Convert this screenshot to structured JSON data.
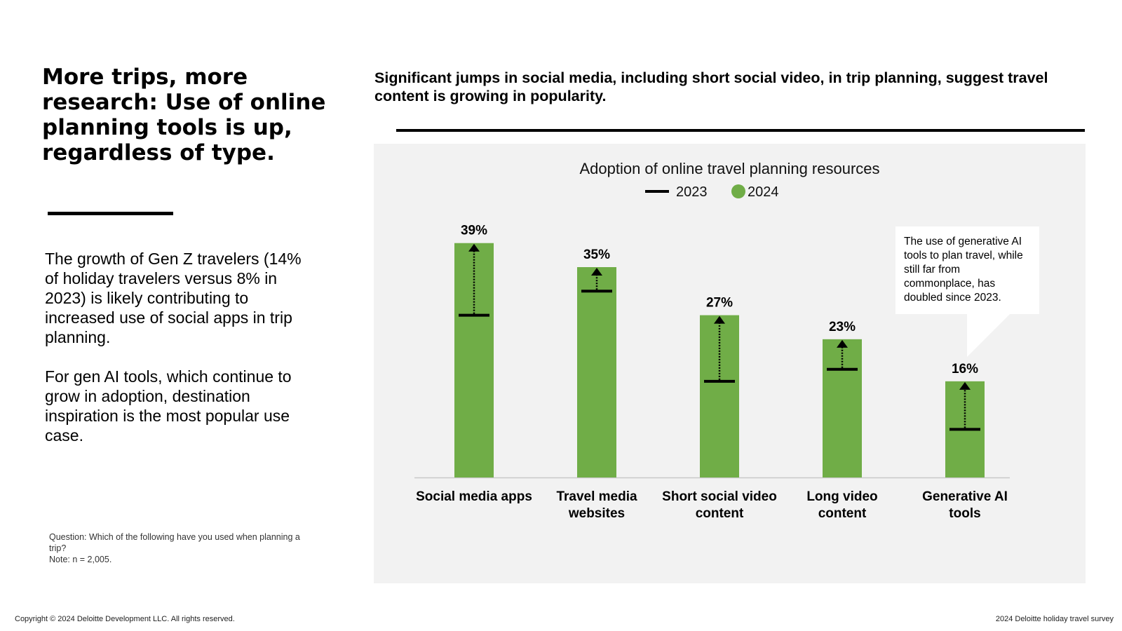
{
  "headline": "More trips, more research: Use of online planning tools is up, regardless of type.",
  "body": {
    "paragraph1": "The growth of Gen Z travelers (14% of holiday travelers versus 8% in 2023) is likely contributing to increased use of social apps in trip planning.",
    "paragraph2": "For gen AI tools, which continue to grow in adoption, destination inspiration is the most popular use case."
  },
  "note": {
    "question": "Question: Which of the following have you used when planning a trip?",
    "sample": "Note: n = 2,005."
  },
  "subheadline": "Significant jumps in social media, including short social video, in trip planning, suggest travel content is growing in popularity.",
  "callout": "The use of generative AI tools to plan travel, while still far from commonplace, has doubled since 2023.",
  "footer": {
    "copyright": "Copyright © 2024 Deloitte Development LLC. All rights reserved.",
    "source": "2024 Deloitte holiday travel survey"
  },
  "colors": {
    "bar": "#70ad47",
    "panel": "#f2f2f2",
    "marker": "#000000"
  },
  "chart_data": {
    "type": "bar",
    "title": "Adoption of online travel planning resources",
    "legend": {
      "position": "top-center",
      "marker_label": "2023",
      "bar_label": "2024"
    },
    "categories": [
      [
        "Social media apps"
      ],
      [
        "Travel media",
        "websites"
      ],
      [
        "Short social video",
        "content"
      ],
      [
        "Long video",
        "content"
      ],
      [
        "Generative AI",
        "tools"
      ]
    ],
    "series": [
      {
        "name": "2024",
        "values": [
          39,
          35,
          27,
          23,
          16
        ],
        "labels": [
          "39%",
          "35%",
          "27%",
          "23%",
          "16%"
        ]
      },
      {
        "name": "2023",
        "values": [
          27,
          31,
          16,
          18,
          8
        ]
      }
    ],
    "ylim": [
      0,
      42
    ],
    "grid": false
  }
}
